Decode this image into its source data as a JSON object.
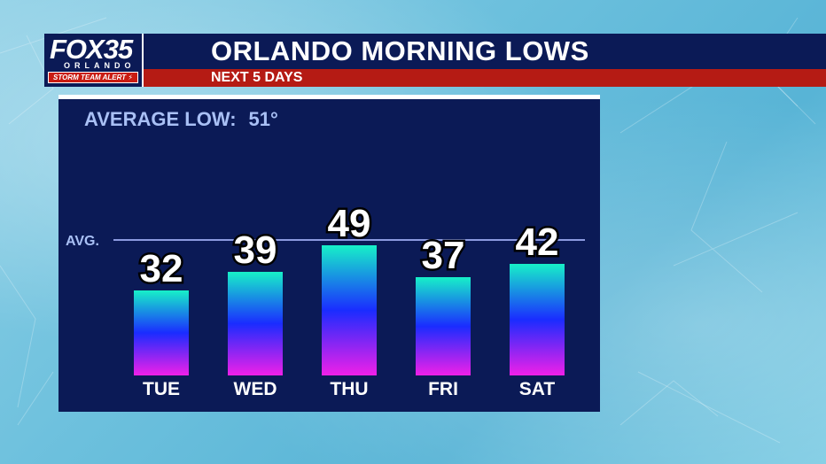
{
  "header": {
    "title": "ORLANDO MORNING LOWS",
    "subtitle": "NEXT 5 DAYS"
  },
  "logo": {
    "main": "FOX35",
    "city": "ORLANDO",
    "alert": "STORM TEAM ALERT ⚡"
  },
  "average": {
    "label": "AVERAGE LOW:",
    "value": "51°",
    "line_label": "AVG."
  },
  "colors": {
    "header_bg": "#0b1a56",
    "subheader_bg": "#b51b14",
    "panel_bg": "#0b1a56",
    "avg_line": "#8c9ae0",
    "bar_top_cyan": "#17f0c8",
    "bar_mid_blue": "#1a2cff",
    "bar_bottom_magenta": "#f020e8"
  },
  "chart_data": {
    "type": "bar",
    "title": "ORLANDO MORNING LOWS",
    "subtitle": "NEXT 5 DAYS",
    "categories": [
      "TUE",
      "WED",
      "THU",
      "FRI",
      "SAT"
    ],
    "values": [
      32,
      39,
      49,
      37,
      42
    ],
    "value_labels": [
      "32",
      "39",
      "49",
      "37",
      "42"
    ],
    "reference_line": {
      "label": "AVG.",
      "value": 51
    },
    "unit": "°F",
    "grid": false,
    "legend": "none"
  }
}
